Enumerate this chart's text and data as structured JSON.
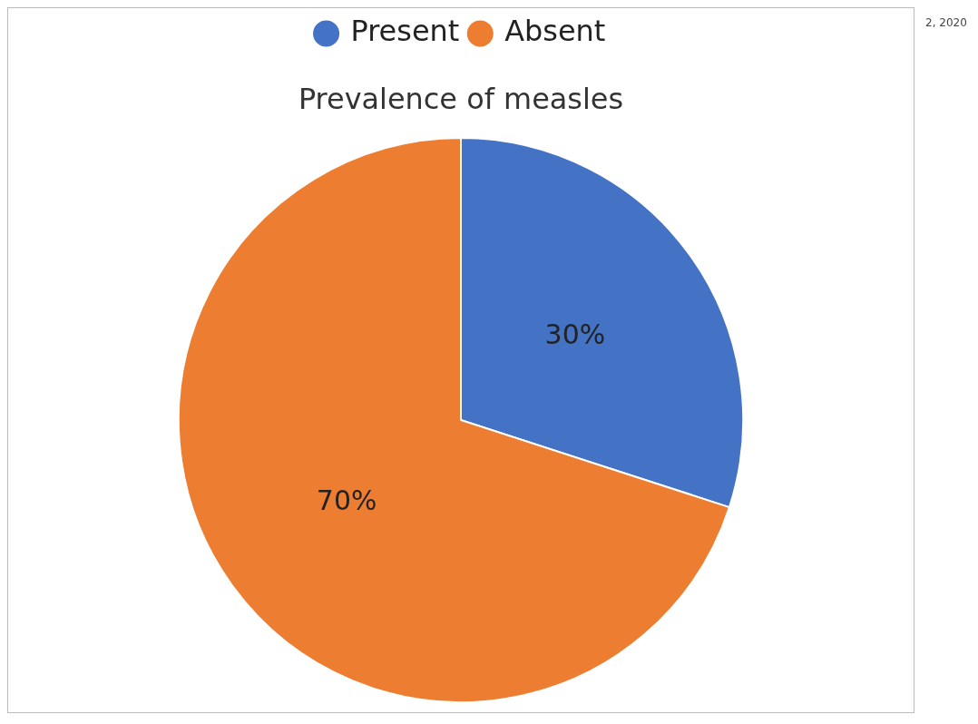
{
  "chart_data": {
    "type": "pie",
    "title": "Prevalence of measles",
    "categories": [
      "Present",
      "Absent"
    ],
    "values": [
      30,
      70
    ],
    "colors": [
      "#4472c4",
      "#ed7d31"
    ],
    "value_labels": [
      "30%",
      "70%"
    ],
    "legend": "top",
    "annotations": [
      "2, 2020"
    ]
  }
}
